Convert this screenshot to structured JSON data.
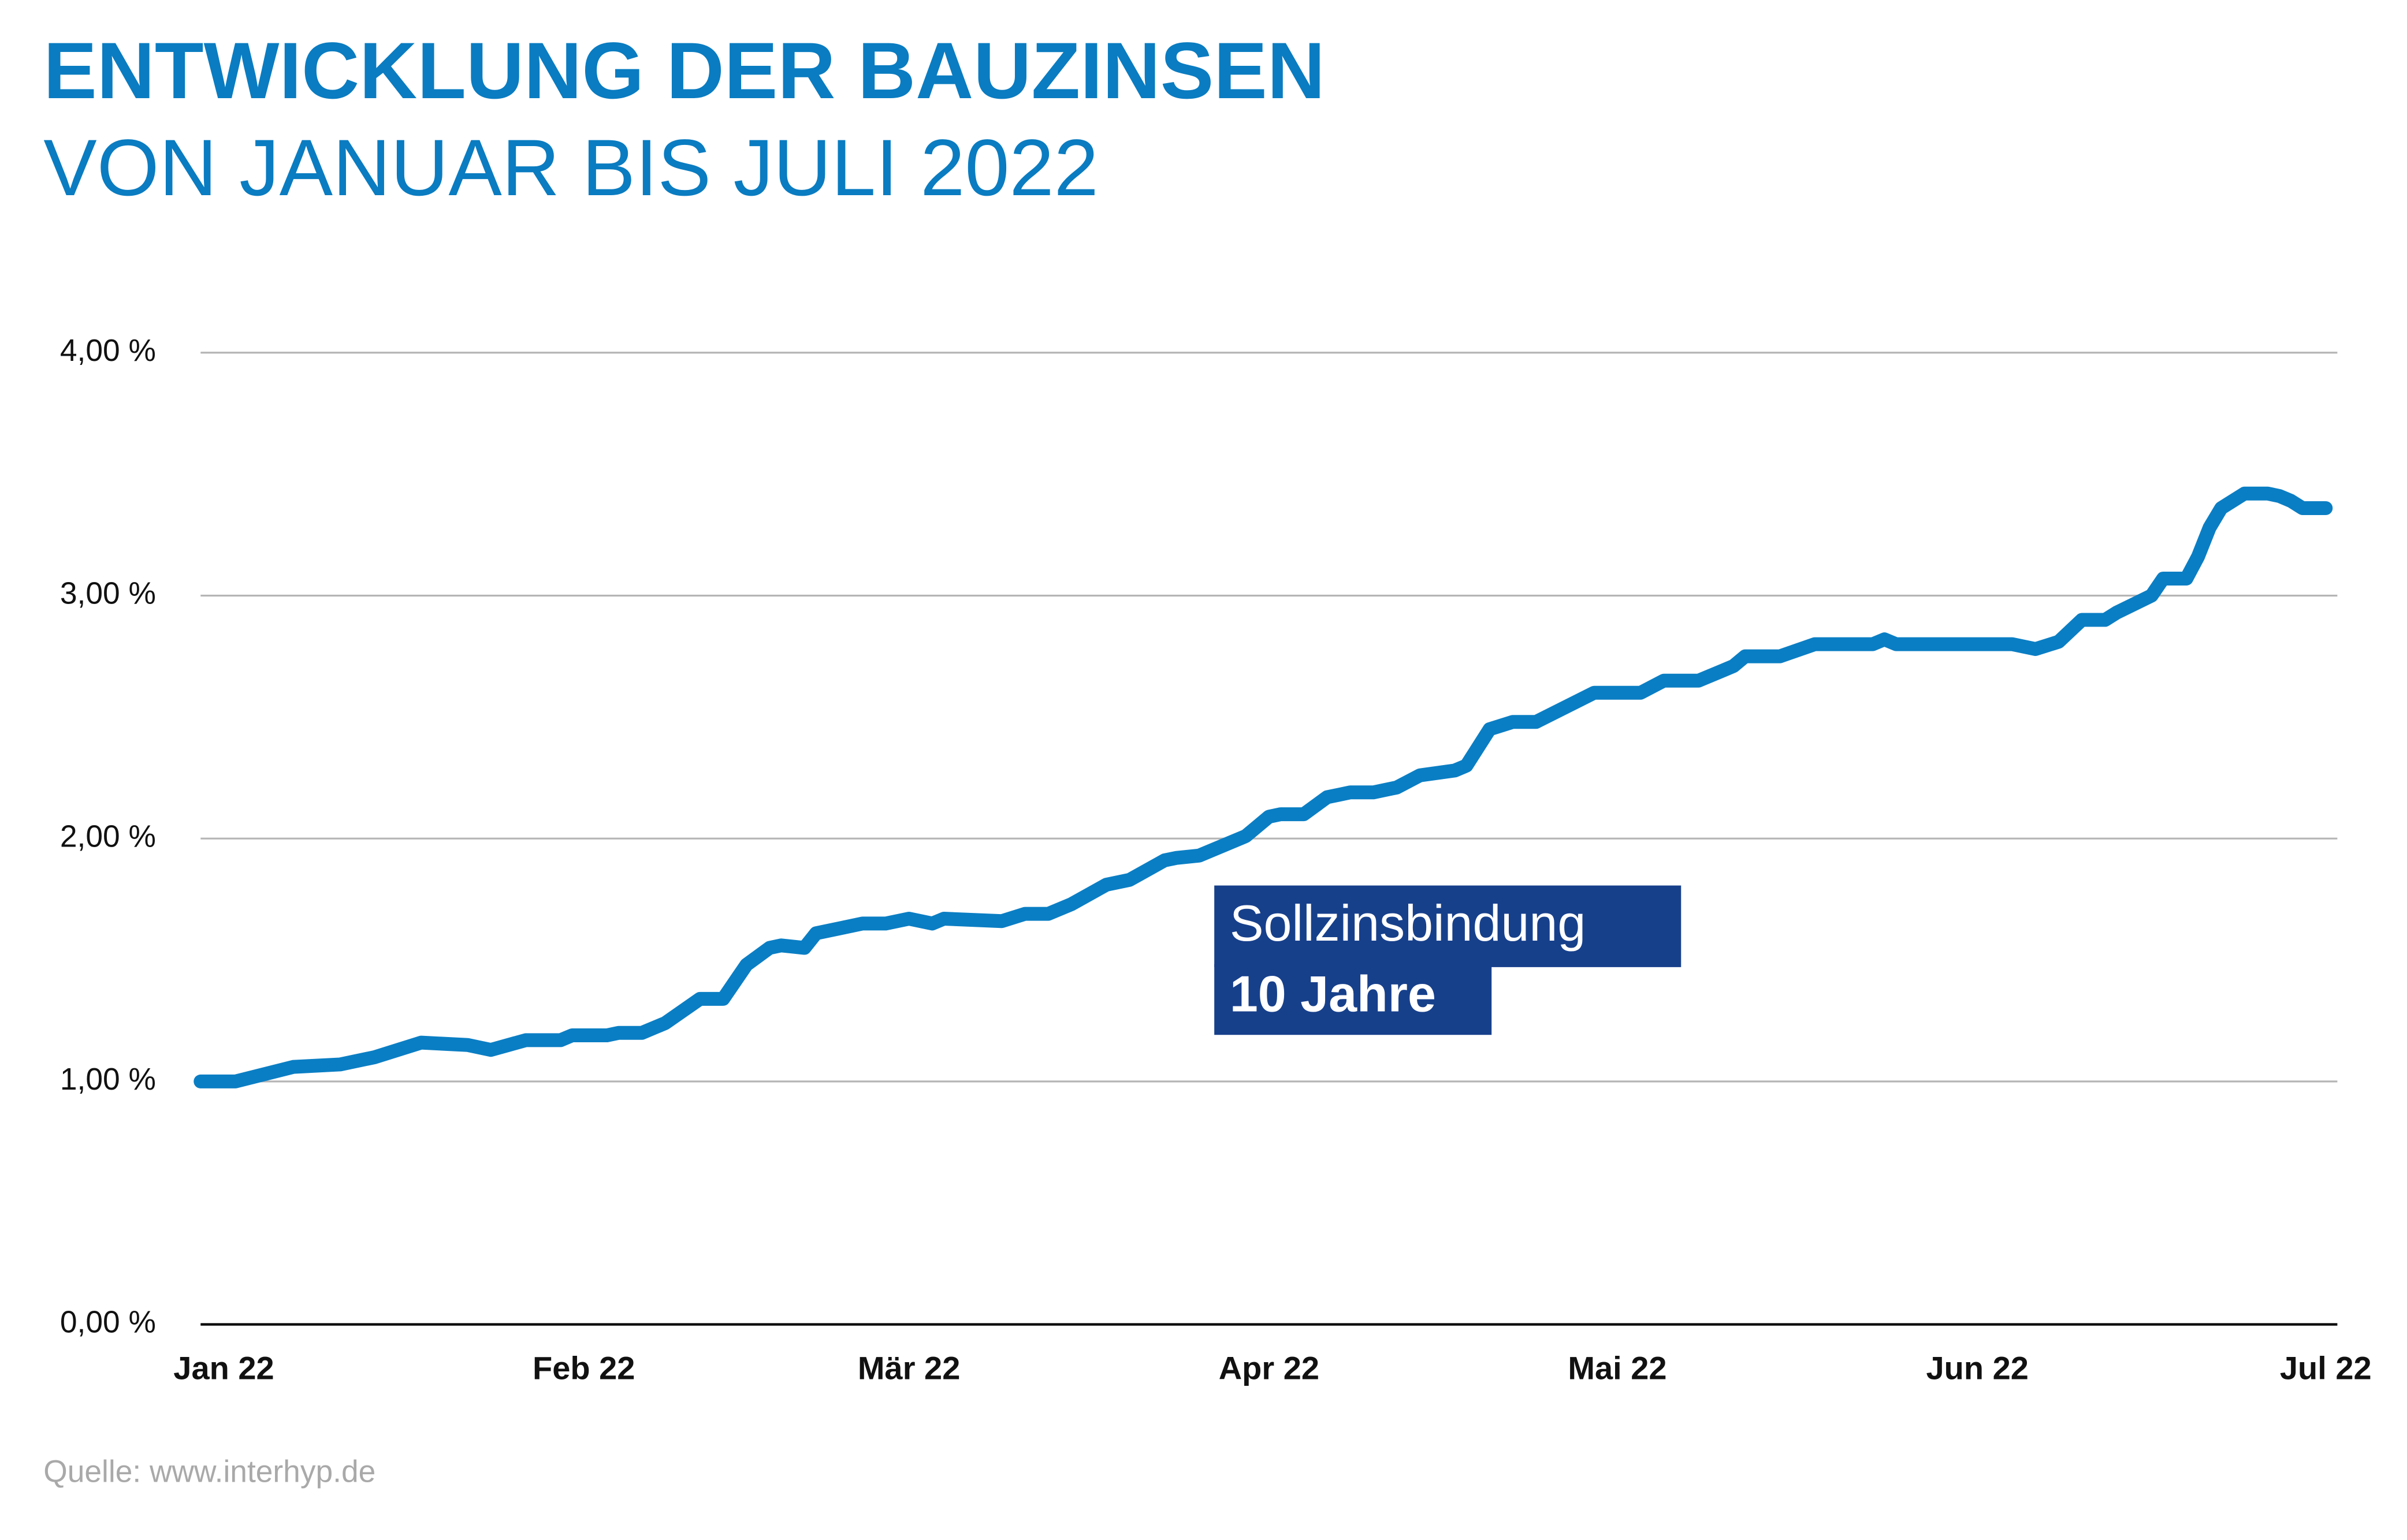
{
  "chart_data": {
    "type": "line",
    "title": "ENTWICKLUNG DER BAUZINSEN",
    "subtitle": "VON JANUAR BIS JULI 2022",
    "annotations": [
      "Sollzinsbindung",
      "10 Jahre"
    ],
    "source": "Quelle: www.interhyp.de",
    "x": [
      -2,
      1,
      6,
      10,
      13,
      17,
      21,
      23,
      26,
      29,
      30,
      33,
      34,
      36,
      38,
      41,
      43,
      45,
      47,
      48,
      50,
      51,
      53,
      55,
      57,
      59,
      61,
      62,
      67,
      69,
      71,
      73,
      76,
      78,
      81,
      82,
      84,
      88,
      90,
      91,
      93,
      95,
      96,
      97,
      99,
      101,
      103,
      106,
      107,
      109,
      111,
      113,
      118,
      122,
      124,
      127,
      129,
      130,
      131,
      134,
      137,
      142,
      143,
      144,
      154,
      156,
      158,
      160,
      162,
      163,
      166,
      167,
      169,
      170,
      171,
      172,
      174,
      176,
      177,
      178,
      179,
      181
    ],
    "series": [
      {
        "color": "#0a7ec4",
        "values": [
          1.0,
          1.0,
          1.06,
          1.07,
          1.1,
          1.16,
          1.15,
          1.13,
          1.17,
          1.17,
          1.19,
          1.19,
          1.2,
          1.2,
          1.24,
          1.34,
          1.34,
          1.48,
          1.55,
          1.56,
          1.55,
          1.61,
          1.63,
          1.65,
          1.65,
          1.67,
          1.65,
          1.67,
          1.66,
          1.69,
          1.69,
          1.73,
          1.81,
          1.83,
          1.91,
          1.92,
          1.93,
          2.01,
          2.09,
          2.1,
          2.1,
          2.17,
          2.18,
          2.19,
          2.19,
          2.21,
          2.26,
          2.28,
          2.3,
          2.45,
          2.48,
          2.48,
          2.6,
          2.6,
          2.65,
          2.65,
          2.69,
          2.71,
          2.75,
          2.75,
          2.8,
          2.8,
          2.82,
          2.8,
          2.8,
          2.78,
          2.81,
          2.9,
          2.9,
          2.93,
          3.0,
          3.07,
          3.07,
          3.16,
          3.28,
          3.36,
          3.42,
          3.42,
          3.41,
          3.39,
          3.36,
          3.36
        ]
      }
    ],
    "xlim": [
      -2,
      182
    ],
    "xticks": [
      {
        "value": 0,
        "label": "Jan 22"
      },
      {
        "value": 31,
        "label": "Feb 22"
      },
      {
        "value": 59,
        "label": "Mär 22"
      },
      {
        "value": 90,
        "label": "Apr 22"
      },
      {
        "value": 120,
        "label": "Mai 22"
      },
      {
        "value": 151,
        "label": "Jun 22"
      },
      {
        "value": 181,
        "label": "Jul 22"
      }
    ],
    "ylim": [
      0,
      4
    ],
    "yticks": [
      {
        "value": 0,
        "label": "0,00 %"
      },
      {
        "value": 1,
        "label": "1,00 %"
      },
      {
        "value": 2,
        "label": "2,00 %"
      },
      {
        "value": 3,
        "label": "3,00 %"
      },
      {
        "value": 4,
        "label": "4,00 %"
      }
    ],
    "grid": true
  }
}
